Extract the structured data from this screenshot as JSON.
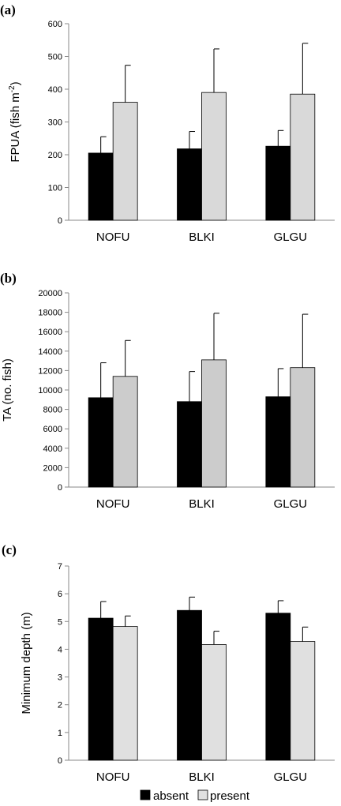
{
  "chart_data": [
    {
      "type": "bar",
      "panel_label": "(a)",
      "ylabel": "FPUA (fish m",
      "ylabel_sup": "-2",
      "ylabel_end": ")",
      "categories": [
        "NOFU",
        "BLKI",
        "GLGU"
      ],
      "ylim": [
        0,
        600
      ],
      "yticks": [
        0,
        100,
        200,
        300,
        400,
        500,
        600
      ],
      "series": [
        {
          "values": [
            205,
            218,
            226
          ],
          "errors": [
            50,
            53,
            48
          ],
          "color": "#000000"
        },
        {
          "values": [
            360,
            390,
            385
          ],
          "errors": [
            113,
            133,
            155
          ],
          "color": "#d9d9d9"
        }
      ]
    },
    {
      "type": "bar",
      "panel_label": "(b)",
      "ylabel": "TA (no. fish)",
      "ylabel_sup": "",
      "ylabel_end": "",
      "categories": [
        "NOFU",
        "BLKI",
        "GLGU"
      ],
      "ylim": [
        0,
        20000
      ],
      "yticks": [
        0,
        2000,
        4000,
        6000,
        8000,
        10000,
        12000,
        14000,
        16000,
        18000,
        20000
      ],
      "series": [
        {
          "values": [
            9200,
            8800,
            9300
          ],
          "errors": [
            3600,
            3100,
            2900
          ],
          "color": "#000000"
        },
        {
          "values": [
            11400,
            13100,
            12300
          ],
          "errors": [
            3700,
            4800,
            5500
          ],
          "color": "#cccccc"
        }
      ]
    },
    {
      "type": "bar",
      "panel_label": "(c)",
      "ylabel": "Minimum depth (m)",
      "ylabel_sup": "",
      "ylabel_end": "",
      "categories": [
        "NOFU",
        "BLKI",
        "GLGU"
      ],
      "ylim": [
        0,
        7
      ],
      "yticks": [
        0,
        1,
        2,
        3,
        4,
        5,
        6,
        7
      ],
      "series": [
        {
          "values": [
            5.12,
            5.4,
            5.3
          ],
          "errors": [
            0.6,
            0.48,
            0.45
          ],
          "color": "#000000"
        },
        {
          "values": [
            4.82,
            4.17,
            4.28
          ],
          "errors": [
            0.38,
            0.48,
            0.52
          ],
          "color": "#e0e0e0"
        }
      ]
    }
  ],
  "legend": {
    "items": [
      {
        "label": "absent",
        "color": "#000000"
      },
      {
        "label": "present",
        "color": "#e0e0e0"
      }
    ]
  }
}
